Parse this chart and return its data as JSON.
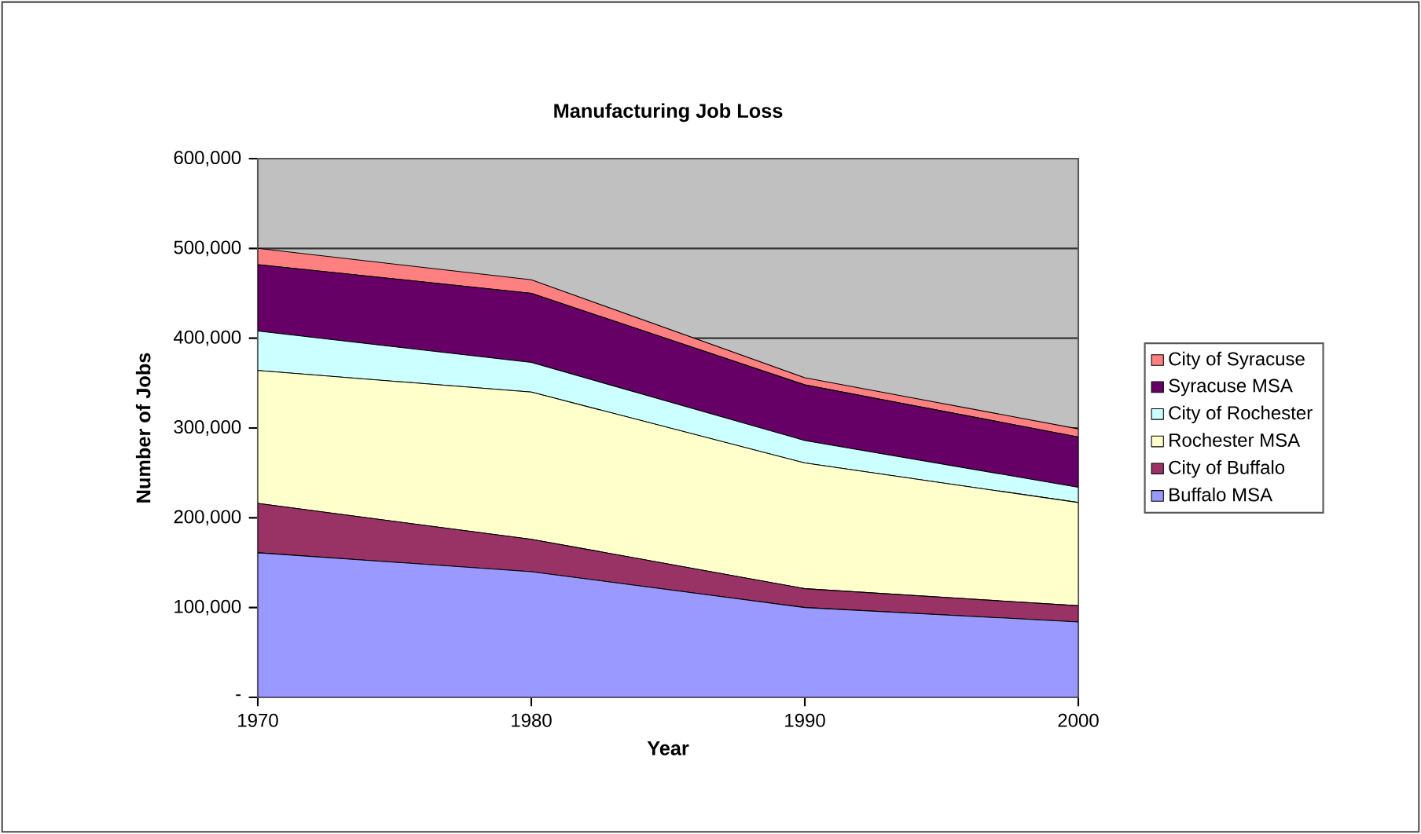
{
  "chart_data": {
    "type": "area",
    "title": "Manufacturing Job Loss",
    "xlabel": "Year",
    "ylabel": "Number of Jobs",
    "stacked": true,
    "grid": "y",
    "legend": "right",
    "x": [
      1970,
      1980,
      1990,
      2000
    ],
    "xlim": [
      1970,
      2000
    ],
    "xticks": [
      1970,
      1980,
      1990,
      2000
    ],
    "ylim": [
      0,
      600000
    ],
    "yticks": [
      {
        "value": 0,
        "label": "-"
      },
      {
        "value": 100000,
        "label": "100,000"
      },
      {
        "value": 200000,
        "label": "200,000"
      },
      {
        "value": 300000,
        "label": "300,000"
      },
      {
        "value": 400000,
        "label": "400,000"
      },
      {
        "value": 500000,
        "label": "500,000"
      },
      {
        "value": 600000,
        "label": "600,000"
      }
    ],
    "series": [
      {
        "name": "Buffalo MSA",
        "color": "#9999ff",
        "values": [
          161000,
          140000,
          100000,
          84000
        ]
      },
      {
        "name": "City of Buffalo",
        "color": "#993366",
        "values": [
          55000,
          36000,
          21000,
          18000
        ]
      },
      {
        "name": "Rochester MSA",
        "color": "#ffffcc",
        "values": [
          148000,
          164000,
          140000,
          115000
        ]
      },
      {
        "name": "City of Rochester",
        "color": "#ccffff",
        "values": [
          44000,
          33000,
          25000,
          17000
        ]
      },
      {
        "name": "Syracuse MSA",
        "color": "#660066",
        "values": [
          74000,
          77000,
          62000,
          56000
        ]
      },
      {
        "name": "City of Syracuse",
        "color": "#ff8080",
        "values": [
          18000,
          15000,
          8000,
          9000
        ]
      }
    ]
  }
}
